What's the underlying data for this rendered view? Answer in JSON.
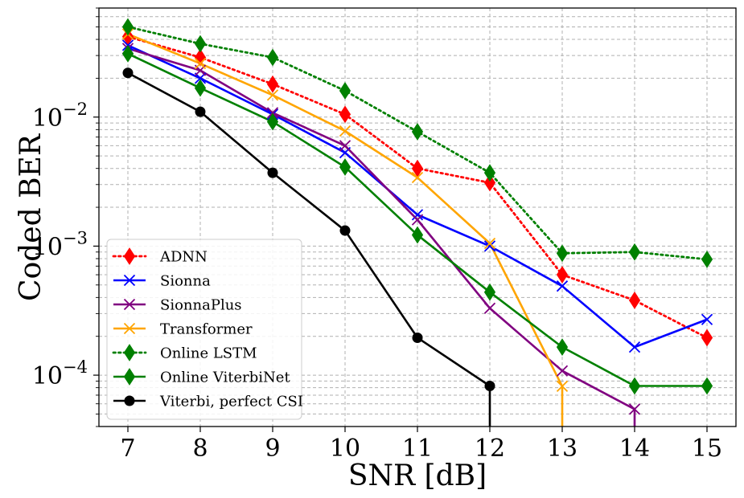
{
  "chart_data": {
    "type": "line",
    "yscale": "log",
    "xlabel": "SNR [dB]",
    "ylabel": "Coded BER",
    "x": [
      7,
      8,
      9,
      10,
      11,
      12,
      13,
      14,
      15
    ],
    "xlim": [
      6.6,
      15.4
    ],
    "ylim": [
      4e-05,
      0.07
    ],
    "xticks": [
      "7",
      "8",
      "9",
      "10",
      "11",
      "12",
      "13",
      "14",
      "15"
    ],
    "yticks": [
      {
        "value": 0.01,
        "base": "10",
        "exp": "−2"
      },
      {
        "value": 0.001,
        "base": "10",
        "exp": "−3"
      },
      {
        "value": 0.0001,
        "base": "10",
        "exp": "−4"
      }
    ],
    "grid": true,
    "legend_position": "lower-left",
    "series": [
      {
        "name": "ADNN",
        "color": "#ff0000",
        "style": "dotted",
        "marker": "thin_diamond",
        "values": [
          0.042,
          0.029,
          0.018,
          0.0105,
          0.004,
          0.0031,
          0.0006,
          0.00038,
          0.000195
        ]
      },
      {
        "name": "Sionna",
        "color": "#0000ff",
        "style": "solid",
        "marker": "x",
        "values": [
          0.036,
          0.02,
          0.0105,
          0.0053,
          0.00175,
          0.001,
          0.00049,
          0.000165,
          0.00027
        ]
      },
      {
        "name": "SionnaPlus",
        "color": "#800080",
        "style": "solid",
        "marker": "x",
        "values": [
          0.034,
          0.023,
          0.0108,
          0.006,
          0.0016,
          0.00033,
          0.000108,
          5.45e-05,
          null
        ]
      },
      {
        "name": "Transformer",
        "color": "#ffa500",
        "style": "solid",
        "marker": "x",
        "values": [
          0.044,
          0.026,
          0.0148,
          0.0078,
          0.0034,
          0.00105,
          8.2e-05,
          null,
          null
        ]
      },
      {
        "name": "Online LSTM",
        "color": "#008000",
        "style": "dotted",
        "marker": "thin_diamond",
        "values": [
          0.05,
          0.037,
          0.029,
          0.016,
          0.0077,
          0.0037,
          0.00088,
          0.0009,
          0.00079
        ]
      },
      {
        "name": "Online ViterbiNet",
        "color": "#008000",
        "style": "solid",
        "marker": "thin_diamond",
        "values": [
          0.031,
          0.0168,
          0.0092,
          0.0041,
          0.00122,
          0.00044,
          0.000165,
          8.25e-05,
          8.25e-05
        ]
      },
      {
        "name": "Viterbi, perfect CSI",
        "color": "#000000",
        "style": "solid",
        "marker": "o",
        "values": [
          0.022,
          0.011,
          0.0037,
          0.00132,
          0.000195,
          8.25e-05,
          null,
          null,
          null
        ]
      }
    ]
  }
}
